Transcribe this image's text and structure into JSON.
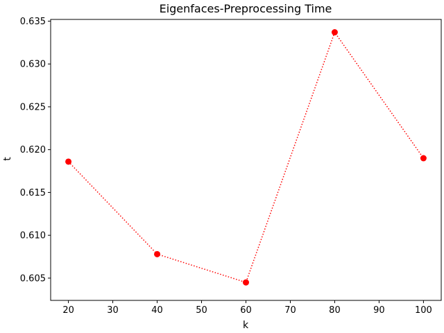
{
  "chart_data": {
    "type": "line",
    "title": "Eigenfaces-Preprocessing Time",
    "xlabel": "k",
    "ylabel": "t",
    "x": [
      20,
      40,
      60,
      80,
      100
    ],
    "series": [
      {
        "values": [
          0.6186,
          0.6078,
          0.6045,
          0.6337,
          0.619
        ]
      }
    ],
    "xlim": [
      16,
      104
    ],
    "ylim": [
      0.6024,
      0.6352
    ],
    "xticks": [
      20,
      30,
      40,
      50,
      60,
      70,
      80,
      90,
      100
    ],
    "yticks": [
      0.605,
      0.61,
      0.615,
      0.62,
      0.625,
      0.63,
      0.635
    ],
    "line_color": "#ff0000",
    "line_style": "dotted",
    "marker": "circle",
    "grid": false
  }
}
